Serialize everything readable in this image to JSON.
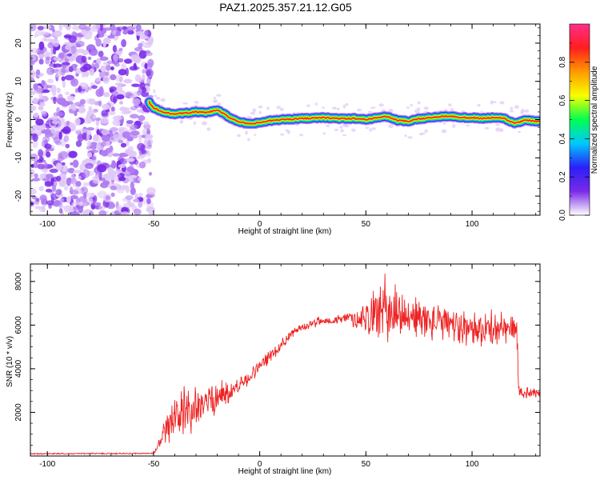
{
  "title": "PAZ1.2025.357.21.12.G05",
  "colors": {
    "snr_line": "#ee2222",
    "axes": "#000000",
    "colormap": [
      "#ffffff",
      "#e0c8f8",
      "#b07cf2",
      "#7a2ae8",
      "#2a20f8",
      "#00c8ff",
      "#00ff50",
      "#f8ff00",
      "#ff9a00",
      "#ff1e1e",
      "#ff2e8c"
    ]
  },
  "chart_data": [
    {
      "type": "heatmap",
      "title": "PAZ1.2025.357.21.12.G05",
      "xlabel": "Height of straight line (km)",
      "ylabel": "Frequency (Hz)",
      "xlim": [
        -108,
        132
      ],
      "ylim": [
        -25,
        25
      ],
      "x_ticks": [
        -100,
        -50,
        0,
        50,
        100
      ],
      "y_ticks": [
        -20,
        -10,
        0,
        10,
        20
      ],
      "noise_region_x": [
        -108,
        -51
      ],
      "signal_start_x": -52,
      "ridge": {
        "x": [
          -52,
          -50,
          -45,
          -40,
          -35,
          -30,
          -25,
          -20,
          -17,
          -14,
          -10,
          -5,
          0,
          5,
          10,
          20,
          30,
          40,
          45,
          50,
          55,
          60,
          65,
          70,
          75,
          80,
          85,
          90,
          95,
          100,
          105,
          110,
          115,
          120,
          125,
          132
        ],
        "freq": [
          4.5,
          3,
          1.8,
          1.5,
          1.7,
          2,
          1.8,
          2.5,
          1.5,
          0.5,
          -0.5,
          -1.2,
          -0.8,
          -0.3,
          0,
          0.3,
          0.5,
          0.2,
          0.3,
          0,
          0.5,
          0.8,
          -0.2,
          -0.5,
          0.2,
          0.5,
          0.8,
          1,
          0.5,
          0.5,
          0.3,
          0.5,
          0.3,
          -1,
          -0.2,
          -0.5
        ]
      },
      "colorbar": {
        "label": "Normalized spectral amplitude",
        "range": [
          0,
          1
        ],
        "ticks": [
          0.0,
          0.2,
          0.4,
          0.6,
          0.8
        ],
        "tick_labels": [
          "0.0",
          "0.2",
          "0.4",
          "0.6",
          "0.8"
        ]
      }
    },
    {
      "type": "line",
      "xlabel": "Height of straight line (km)",
      "ylabel": "SNR (10 * v/v)",
      "xlim": [
        -108,
        132
      ],
      "ylim": [
        0,
        8800
      ],
      "x_ticks": [
        -100,
        -50,
        0,
        50,
        100
      ],
      "y_ticks": [
        2000,
        4000,
        6000,
        8000
      ],
      "series": [
        {
          "name": "SNR",
          "x": [
            -108,
            -50,
            -48,
            -45,
            -40,
            -35,
            -30,
            -25,
            -20,
            -15,
            -10,
            -5,
            0,
            5,
            10,
            15,
            20,
            25,
            30,
            35,
            40,
            45,
            50,
            55,
            60,
            65,
            70,
            75,
            80,
            85,
            90,
            95,
            100,
            105,
            110,
            115,
            120,
            121,
            122,
            125,
            132
          ],
          "mean": [
            100,
            120,
            400,
            1000,
            1700,
            2000,
            2200,
            2500,
            2700,
            2900,
            3200,
            3600,
            4100,
            4600,
            5100,
            5600,
            5900,
            6100,
            6200,
            6200,
            6300,
            6300,
            6400,
            6500,
            6700,
            6600,
            6400,
            6300,
            6200,
            6100,
            6000,
            5900,
            5900,
            5800,
            5800,
            5800,
            5800,
            5800,
            3000,
            2900,
            2900
          ],
          "spread": [
            30,
            30,
            200,
            600,
            900,
            1100,
            1000,
            900,
            800,
            500,
            400,
            350,
            300,
            300,
            250,
            200,
            200,
            200,
            200,
            200,
            250,
            400,
            800,
            1300,
            1500,
            1200,
            1000,
            900,
            850,
            800,
            800,
            800,
            800,
            800,
            800,
            800,
            800,
            800,
            300,
            250,
            250
          ]
        }
      ]
    }
  ]
}
